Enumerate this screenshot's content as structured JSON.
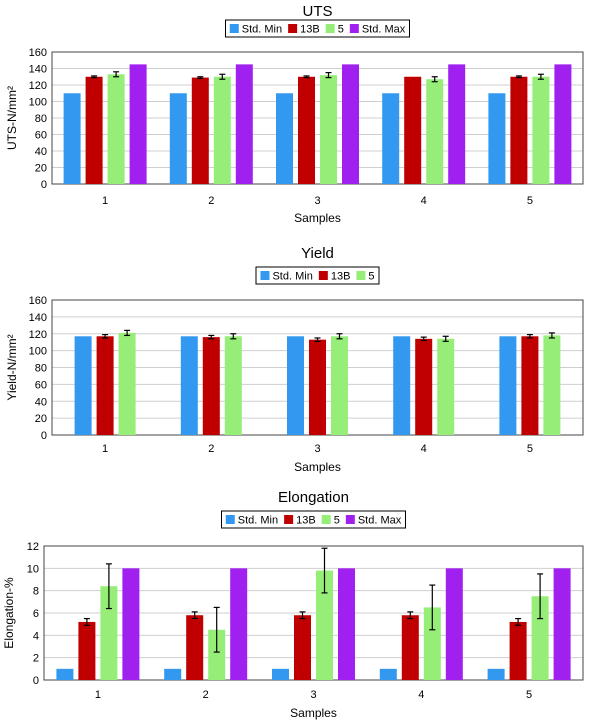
{
  "colors": {
    "Std. Min": "#3399f0",
    "13B": "#c00000",
    "5": "#96ee78",
    "Std. Max": "#a020f0"
  },
  "chart_data": [
    {
      "type": "bar",
      "title": "UTS",
      "xlabel": "Samples",
      "ylabel": "UTS-N/mm²",
      "ylim": [
        0,
        160
      ],
      "yticks": [
        0,
        20,
        40,
        60,
        80,
        100,
        120,
        140,
        160
      ],
      "categories": [
        "1",
        "2",
        "3",
        "4",
        "5"
      ],
      "grid": true,
      "legend": "top",
      "series": [
        {
          "name": "Std. Min",
          "values": [
            110,
            110,
            110,
            110,
            110
          ]
        },
        {
          "name": "13B",
          "values": [
            130,
            129,
            130,
            130,
            130
          ],
          "errors": [
            1,
            1,
            1,
            0,
            1
          ]
        },
        {
          "name": "5",
          "values": [
            133,
            130,
            132,
            127,
            130
          ],
          "errors": [
            3,
            3,
            3,
            3,
            3
          ]
        },
        {
          "name": "Std. Max",
          "values": [
            145,
            145,
            145,
            145,
            145
          ]
        }
      ]
    },
    {
      "type": "bar",
      "title": "Yield",
      "xlabel": "Samples",
      "ylabel": "Yield-N/mm²",
      "ylim": [
        0,
        160
      ],
      "yticks": [
        0,
        20,
        40,
        60,
        80,
        100,
        120,
        140,
        160
      ],
      "categories": [
        "1",
        "2",
        "3",
        "4",
        "5"
      ],
      "grid": true,
      "legend": "top",
      "series": [
        {
          "name": "Std. Min",
          "values": [
            117,
            117,
            117,
            117,
            117
          ]
        },
        {
          "name": "13B",
          "values": [
            117,
            116,
            113,
            114,
            117
          ],
          "errors": [
            2,
            2,
            2,
            2,
            2
          ]
        },
        {
          "name": "5",
          "values": [
            121,
            117,
            117,
            114,
            118
          ],
          "errors": [
            3,
            3,
            3,
            3,
            3
          ]
        }
      ]
    },
    {
      "type": "bar",
      "title": "Elongation",
      "xlabel": "Samples",
      "ylabel": "Elongation-%",
      "ylim": [
        0,
        12
      ],
      "yticks": [
        0,
        2,
        4,
        6,
        8,
        10,
        12
      ],
      "categories": [
        "1",
        "2",
        "3",
        "4",
        "5"
      ],
      "grid": true,
      "legend": "top",
      "series": [
        {
          "name": "Std. Min",
          "values": [
            1,
            1,
            1,
            1,
            1
          ]
        },
        {
          "name": "13B",
          "values": [
            5.2,
            5.8,
            5.8,
            5.8,
            5.2
          ],
          "errors": [
            0.3,
            0.3,
            0.3,
            0.3,
            0.3
          ]
        },
        {
          "name": "5",
          "values": [
            8.4,
            4.5,
            9.8,
            6.5,
            7.5
          ],
          "errors": [
            2.0,
            2.0,
            2.0,
            2.0,
            2.0
          ]
        },
        {
          "name": "Std. Max",
          "values": [
            10,
            10,
            10,
            10,
            10
          ]
        }
      ]
    }
  ]
}
